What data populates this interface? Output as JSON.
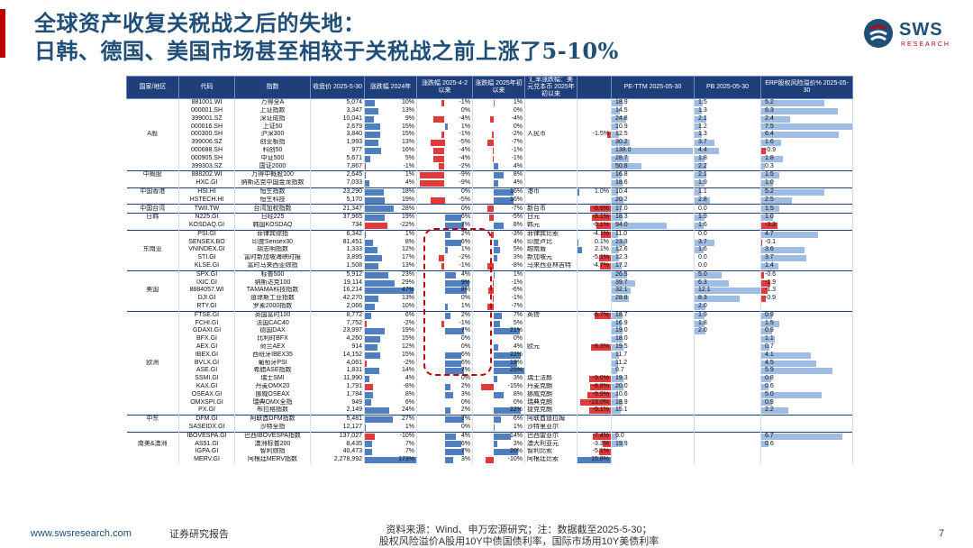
{
  "title": {
    "line1": "全球资产收复关税战之后的失地：",
    "line2": "日韩、德国、美国市场甚至相较于关税战之前上涨了5-10%"
  },
  "logo": {
    "text": "SWS",
    "sub": "RESEARCH"
  },
  "headers": [
    "国家/地区",
    "代码",
    "指数",
    "收盘价\n2025-5-30",
    "涨跌幅\n2024年",
    "涨跌幅\n2025-4-2以来",
    "涨跌幅\n2025年初以来",
    "汇率涨跌幅：美元兑本币\n2025年初以来",
    "",
    "PE-TTM\n2025-05-30",
    "PB\n2025-05-30",
    "ERP股权风险溢价%\n2025-05-30"
  ],
  "rows": [
    {
      "region": "",
      "code": "881001.WI",
      "name": "万得全A",
      "close": "5,074",
      "y2024": "10%",
      "since42": "-1%",
      "ytd": "1%",
      "fx_ccy": "",
      "fx": "",
      "pe": "18.9",
      "pb": "1.5",
      "erp": "5.2"
    },
    {
      "region": "",
      "code": "000001.SH",
      "name": "上证指数",
      "close": "3,347",
      "y2024": "13%",
      "since42": "0%",
      "ytd": "0%",
      "fx_ccy": "",
      "fx": "",
      "pe": "14.5",
      "pb": "1.3",
      "erp": "6.3"
    },
    {
      "region": "",
      "code": "399001.SZ",
      "name": "深证成指",
      "close": "10,041",
      "y2024": "9%",
      "since42": "-4%",
      "ytd": "-4%",
      "fx_ccy": "",
      "fx": "",
      "pe": "24.8",
      "pb": "2.1",
      "erp": "2.4"
    },
    {
      "region": "",
      "code": "000016.SH",
      "name": "上证50",
      "close": "2,679",
      "y2024": "15%",
      "since42": "1%",
      "ytd": "0%",
      "fx_ccy": "",
      "fx": "",
      "pe": "10.9",
      "pb": "1.2",
      "erp": "7.5"
    },
    {
      "region": "A股",
      "code": "000300.SH",
      "name": "沪深300",
      "close": "3,840",
      "y2024": "15%",
      "since42": "-1%",
      "ytd": "-2%",
      "fx_ccy": "人民币",
      "fx": "-1.5%",
      "pe": "12.5",
      "pb": "1.3",
      "erp": "6.4"
    },
    {
      "region": "",
      "code": "399006.SZ",
      "name": "创业板指",
      "close": "1,993",
      "y2024": "13%",
      "since42": "-5%",
      "ytd": "-7%",
      "fx_ccy": "",
      "fx": "",
      "pe": "30.2",
      "pb": "3.7",
      "erp": "1.6"
    },
    {
      "region": "",
      "code": "000688.SH",
      "name": "科创50",
      "close": "977",
      "y2024": "16%",
      "since42": "-4%",
      "ytd": "-1%",
      "fx_ccy": "",
      "fx": "",
      "pe": "138.0",
      "pb": "4.4",
      "erp": "-0.9"
    },
    {
      "region": "",
      "code": "000905.SH",
      "name": "中证500",
      "close": "5,671",
      "y2024": "5%",
      "since42": "-4%",
      "ytd": "-1%",
      "fx_ccy": "",
      "fx": "",
      "pe": "28.7",
      "pb": "1.8",
      "erp": "1.8"
    },
    {
      "region": "",
      "code": "399303.SZ",
      "name": "国证2000",
      "close": "7,867",
      "y2024": "-1%",
      "since42": "-2%",
      "ytd": "4%",
      "fx_ccy": "",
      "fx": "",
      "pe": "50.8",
      "pb": "2.2",
      "erp": "0.3"
    },
    {
      "region": "中概股",
      "code": "888202.WI",
      "name": "万得中概股100",
      "close": "2,645",
      "y2024": "1%",
      "since42": "-9%",
      "ytd": "8%",
      "fx_ccy": "",
      "fx": "",
      "pe": "16.8",
      "pb": "2.1",
      "erp": "1.5",
      "sep": true
    },
    {
      "region": "",
      "code": "HXC.GI",
      "name": "纳斯达克中国金龙指数",
      "close": "7,033",
      "y2024": "4%",
      "since42": "-9%",
      "ytd": "4%",
      "fx_ccy": "",
      "fx": "",
      "pe": "18.6",
      "pb": "1.9",
      "erp": "1.0"
    },
    {
      "region": "中国香港",
      "code": "HSI.HI",
      "name": "恒生指数",
      "close": "23,290",
      "y2024": "18%",
      "since42": "0%",
      "ytd": "16%",
      "fx_ccy": "港币",
      "fx": "1.0%",
      "pe": "10.4",
      "pb": "1.1",
      "erp": "5.2",
      "sep": true
    },
    {
      "region": "",
      "code": "HSTECH.HI",
      "name": "恒生科技",
      "close": "5,170",
      "y2024": "19%",
      "since42": "-5%",
      "ytd": "16%",
      "fx_ccy": "",
      "fx": "",
      "pe": "20.2",
      "pb": "2.8",
      "erp": "2.5"
    },
    {
      "region": "中国台湾",
      "code": "TWII.TW",
      "name": "台湾加权指数",
      "close": "21,347",
      "y2024": "28%",
      "since42": "0%",
      "ytd": "-7%",
      "fx_ccy": "新台币",
      "fx": "-8.6%",
      "pe": "17.0",
      "pb": "0.0",
      "erp": "1.5",
      "sep": true
    },
    {
      "region": "日韩",
      "code": "N225.GI",
      "name": "日经225",
      "close": "37,965",
      "y2024": "19%",
      "since42": "6%",
      "ytd": "-5%",
      "fx_ccy": "日元",
      "fx": "-8.1%",
      "pe": "18.3",
      "pb": "1.9",
      "erp": "1.0",
      "sep": true
    },
    {
      "region": "",
      "code": "KOSDAQ.GI",
      "name": "韩国KOSDAQ",
      "close": "734",
      "y2024": "-22%",
      "since42": "7%",
      "ytd": "8%",
      "fx_ccy": "韩元",
      "fx": "-6.1%",
      "pe": "94.0",
      "pb": "1.6",
      "erp": "-3.3"
    },
    {
      "region": "",
      "code": "PSI.GI",
      "name": "菲律宾综指",
      "close": "6,342",
      "y2024": "1%",
      "since42": "2%",
      "ytd": "-3%",
      "fx_ccy": "菲律宾比索",
      "fx": "-4.1%",
      "pe": "11.0",
      "pb": "0.0",
      "erp": "4.7",
      "sep": true
    },
    {
      "region": "",
      "code": "SENSEX.BO",
      "name": "印度Sensex30",
      "close": "81,451",
      "y2024": "8%",
      "since42": "6%",
      "ytd": "4%",
      "fx_ccy": "印度卢比",
      "fx": "0.1%",
      "pe": "23.3",
      "pb": "3.7",
      "erp": "-0.1"
    },
    {
      "region": "东南亚",
      "code": "VNINDEX.GI",
      "name": "胡志明指数",
      "close": "1,333",
      "y2024": "12%",
      "since42": "1%",
      "ytd": "5%",
      "fx_ccy": "越南盾",
      "fx": "2.1%",
      "pe": "12.6",
      "pb": "1.6",
      "erp": "3.6"
    },
    {
      "region": "",
      "code": "STI.GI",
      "name": "富时新加坡海峡时报",
      "close": "3,895",
      "y2024": "17%",
      "since42": "-2%",
      "ytd": "3%",
      "fx_ccy": "新加坡元",
      "fx": "-5.1%",
      "pe": "12.3",
      "pb": "0.0",
      "erp": "3.7"
    },
    {
      "region": "",
      "code": "KLSE.GI",
      "name": "富时马来西亚综指",
      "close": "1,508",
      "y2024": "13%",
      "since42": "-1%",
      "ytd": "-8%",
      "fx_ccy": "马来西亚林吉特",
      "fx": "-4.7%",
      "pe": "17.2",
      "pb": "0.0",
      "erp": "1.4"
    },
    {
      "region": "",
      "code": "SPX.GI",
      "name": "标普500",
      "close": "5,912",
      "y2024": "23%",
      "since42": "4%",
      "ytd": "1%",
      "fx_ccy": "",
      "fx": "",
      "pe": "26.5",
      "pb": "5.0",
      "erp": "-0.6",
      "sep": true
    },
    {
      "region": "",
      "code": "IXIC.GI",
      "name": "纳斯达克100",
      "close": "19,114",
      "y2024": "29%",
      "since42": "9%",
      "ytd": "-1%",
      "fx_ccy": "",
      "fx": "",
      "pe": "39.7",
      "pb": "6.3",
      "erp": "-1.9"
    },
    {
      "region": "美国",
      "code": "8884057.WI",
      "name": "TAMAMA科技指数",
      "close": "16,214",
      "y2024": "47%",
      "since42": "8%",
      "ytd": "-6%",
      "fx_ccy": "",
      "fx": "",
      "pe": "32.1",
      "pb": "12.1",
      "erp": "-1.3"
    },
    {
      "region": "",
      "code": "DJI.GI",
      "name": "道琼斯工业指数",
      "close": "42,270",
      "y2024": "13%",
      "since42": "0%",
      "ytd": "-1%",
      "fx_ccy": "",
      "fx": "",
      "pe": "28.8",
      "pb": "8.3",
      "erp": "-0.9"
    },
    {
      "region": "",
      "code": "RTY.GI",
      "name": "罗素2000指数",
      "close": "2,066",
      "y2024": "10%",
      "since42": "1%",
      "ytd": "-7%",
      "fx_ccy": "",
      "fx": "",
      "pe": "",
      "pb": "2.0",
      "erp": ""
    },
    {
      "region": "",
      "code": "FTSE.GI",
      "name": "英国富时100",
      "close": "8,772",
      "y2024": "6%",
      "since42": "2%",
      "ytd": "7%",
      "fx_ccy": "英镑",
      "fx": "-6.7%",
      "pe": "18.7",
      "pb": "1.9",
      "erp": "0.9",
      "sep": true
    },
    {
      "region": "",
      "code": "FCHI.GI",
      "name": "法国CAC40",
      "close": "7,752",
      "y2024": "-2%",
      "since42": "-1%",
      "ytd": "5%",
      "fx_ccy": "",
      "fx": "",
      "pe": "16.9",
      "pb": "1.8",
      "erp": "1.5"
    },
    {
      "region": "",
      "code": "GDAXI.GI",
      "name": "德国DAX",
      "close": "23,997",
      "y2024": "19%",
      "since42": "7%",
      "ytd": "21%",
      "fx_ccy": "",
      "fx": "",
      "pe": "19.0",
      "pb": "2.0",
      "erp": "0.9"
    },
    {
      "region": "",
      "code": "BFX.GI",
      "name": "比利时BFX",
      "close": "4,260",
      "y2024": "15%",
      "since42": "0%",
      "ytd": "0%",
      "fx_ccy": "",
      "fx": "",
      "pe": "18.0",
      "pb": "",
      "erp": "1.1"
    },
    {
      "region": "",
      "code": "AEX.GI",
      "name": "荷兰AEX",
      "close": "914",
      "y2024": "12%",
      "since42": "0%",
      "ytd": "4%",
      "fx_ccy": "欧元",
      "fx": "-8.3%",
      "pe": "19.5",
      "pb": "",
      "erp": "0.7"
    },
    {
      "region": "",
      "code": "IBEX.GI",
      "name": "西班牙IBEX35",
      "close": "14,152",
      "y2024": "15%",
      "since42": "6%",
      "ytd": "22%",
      "fx_ccy": "",
      "fx": "",
      "pe": "11.7",
      "pb": "",
      "erp": "4.1"
    },
    {
      "region": "欧洲",
      "code": "BVLX.GI",
      "name": "葡萄牙PSI",
      "close": "4,061",
      "y2024": "-2%",
      "since42": "6%",
      "ytd": "19%",
      "fx_ccy": "",
      "fx": "",
      "pe": "11.2",
      "pb": "",
      "erp": "4.5"
    },
    {
      "region": "",
      "code": "ASE.GI",
      "name": "希腊ASE指数",
      "close": "1,831",
      "y2024": "14%",
      "since42": "7%",
      "ytd": "25%",
      "fx_ccy": "",
      "fx": "",
      "pe": "9.7",
      "pb": "",
      "erp": "5.9"
    },
    {
      "region": "",
      "code": "SSMI.GI",
      "name": "瑞士SMI",
      "close": "11,990",
      "y2024": "4%",
      "since42": "0%",
      "ytd": "3%",
      "fx_ccy": "瑞士法郎",
      "fx": "-9.0%",
      "pe": "19.3",
      "pb": "",
      "erp": "0.8"
    },
    {
      "region": "",
      "code": "KAX.GI",
      "name": "丹麦OMX20",
      "close": "1,791",
      "y2024": "-8%",
      "since42": "2%",
      "ytd": "-15%",
      "fx_ccy": "丹麦克朗",
      "fx": "-8.8%",
      "pe": "20.0",
      "pb": "",
      "erp": "0.6"
    },
    {
      "region": "",
      "code": "OSEAX.GI",
      "name": "挪威OSEAX",
      "close": "1,784",
      "y2024": "8%",
      "since42": "3%",
      "ytd": "8%",
      "fx_ccy": "挪威克朗",
      "fx": "-9.9%",
      "pe": "10.6",
      "pb": "",
      "erp": "5.0"
    },
    {
      "region": "",
      "code": "OMXSPI.GI",
      "name": "瑞典OMX全指",
      "close": "949",
      "y2024": "6%",
      "since42": "0%",
      "ytd": "0%",
      "fx_ccy": "瑞典克朗",
      "fx": "-13.0%",
      "pe": "18.9",
      "pb": "",
      "erp": "0.9"
    },
    {
      "region": "",
      "code": "PX.GI",
      "name": "布拉格指数",
      "close": "2,149",
      "y2024": "24%",
      "since42": "2%",
      "ytd": "22%",
      "fx_ccy": "捷克克朗",
      "fx": "-9.1%",
      "pe": "15.1",
      "pb": "",
      "erp": "2.2"
    },
    {
      "region": "中东",
      "code": "DFM.GI",
      "name": "阿联酋DFM指数",
      "close": "5,481",
      "y2024": "27%",
      "since42": "7%",
      "ytd": "6%",
      "fx_ccy": "阿联酋迪拉姆",
      "fx": "",
      "pe": "",
      "pb": "",
      "erp": "",
      "sep": true
    },
    {
      "region": "",
      "code": "SASEIDX.GI",
      "name": "沙特全指",
      "close": "12,127",
      "y2024": "1%",
      "since42": "0%",
      "ytd": "1%",
      "fx_ccy": "沙特里亚尔",
      "fx": "",
      "pe": "",
      "pb": "",
      "erp": ""
    },
    {
      "region": "",
      "code": "IBOVESPA.GI",
      "name": "巴西IBOVESPA指数",
      "close": "137,027",
      "y2024": "-10%",
      "since42": "4%",
      "ytd": "14%",
      "fx_ccy": "巴西雷亚尔",
      "fx": "-7.4%",
      "pe": "9.0",
      "pb": "",
      "erp": "6.7",
      "sep": true
    },
    {
      "region": "南美&澳洲",
      "code": "AS51.GI",
      "name": "澳洲标普200",
      "close": "8,435",
      "y2024": "7%",
      "since42": "6%",
      "ytd": "3%",
      "fx_ccy": "澳大利亚元",
      "fx": "-3.3%",
      "pe": "19.9",
      "pb": "",
      "erp": "0.6"
    },
    {
      "region": "",
      "code": "IGPA.GI",
      "name": "智利综指",
      "close": "40,473",
      "y2024": "7%",
      "since42": "7%",
      "ytd": "20%",
      "fx_ccy": "智利比索",
      "fx": "-5.1%",
      "pe": "",
      "pb": "",
      "erp": ""
    },
    {
      "region": "",
      "code": "MERV.GI",
      "name": "阿根廷MERV指数",
      "close": "2,278,992",
      "y2024": "173%",
      "since42": "3%",
      "ytd": "-10%",
      "fx_ccy": "阿根廷比索",
      "fx": "15.8%",
      "pe": "",
      "pb": "",
      "erp": ""
    }
  ],
  "footer": {
    "url": "www.swsresearch.com",
    "label": "证券研究报告",
    "source_line1": "资料来源：Wind、申万宏源研究；注：数据截至2025-5-30；",
    "source_line2": "股权风险溢价A股用10Y中债国债利率，国际市场用10Y美债利率",
    "page": "7"
  }
}
